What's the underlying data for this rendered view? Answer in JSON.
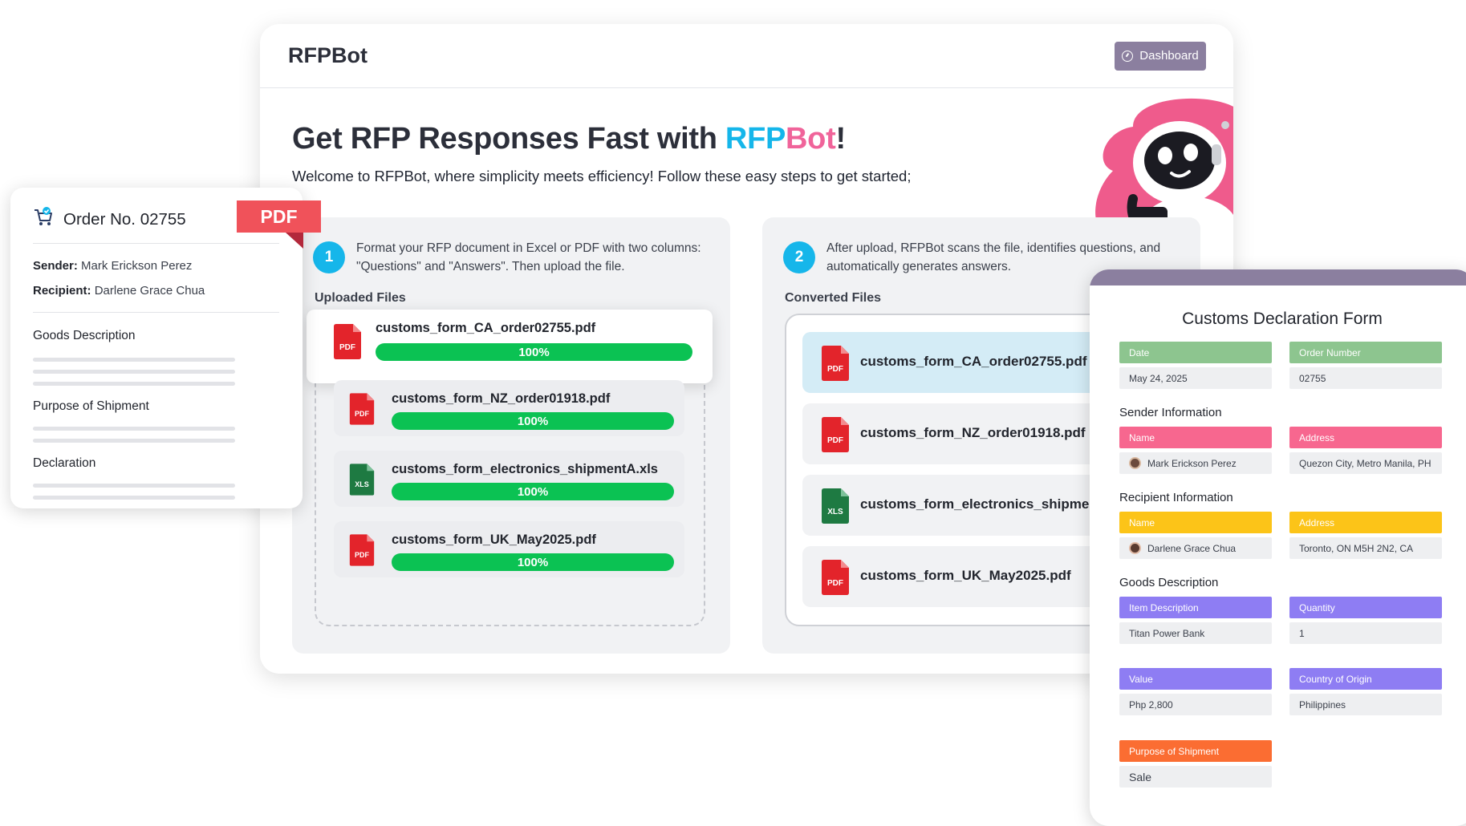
{
  "app": {
    "title": "RFPBot",
    "dashboard_label": "Dashboard"
  },
  "hero": {
    "title_prefix": "Get RFP Responses Fast with ",
    "title_rfp": "RFP",
    "title_bot": "Bot",
    "title_suffix": "!",
    "subtitle": "Welcome to RFPBot, where simplicity meets efficiency! Follow these easy steps to get started;"
  },
  "step1": {
    "number": "1",
    "text": "Format your RFP document in Excel or PDF with two columns: \"Questions\" and \"Answers\". Then upload the file.",
    "section_label": "Uploaded Files",
    "files": [
      {
        "name": "customs_form_CA_order02755.pdf",
        "type": "PDF",
        "progress": "100%"
      },
      {
        "name": "customs_form_NZ_order01918.pdf",
        "type": "PDF",
        "progress": "100%"
      },
      {
        "name": "customs_form_electronics_shipmentA.xls",
        "type": "XLS",
        "progress": "100%"
      },
      {
        "name": "customs_form_UK_May2025.pdf",
        "type": "PDF",
        "progress": "100%"
      }
    ]
  },
  "step2": {
    "number": "2",
    "text": "After upload, RFPBot scans the file, identifies questions, and automatically generates answers.",
    "section_label": "Converted Files",
    "files": [
      {
        "name": "customs_form_CA_order02755.pdf",
        "type": "PDF"
      },
      {
        "name": "customs_form_NZ_order01918.pdf",
        "type": "PDF"
      },
      {
        "name": "customs_form_electronics_shipmentA",
        "type": "XLS"
      },
      {
        "name": "customs_form_UK_May2025.pdf",
        "type": "PDF"
      }
    ]
  },
  "order": {
    "title": "Order No. 02755",
    "tag": "PDF",
    "sender_label": "Sender:",
    "sender": "Mark Erickson Perez",
    "recipient_label": "Recipient:",
    "recipient": "Darlene Grace Chua",
    "goods_label": "Goods Description",
    "purpose_label": "Purpose of Shipment",
    "declaration_label": "Declaration"
  },
  "customs": {
    "title": "Customs Declaration Form",
    "date_label": "Date",
    "date": "May 24, 2025",
    "order_label": "Order Number",
    "order": "02755",
    "sender_section": "Sender Information",
    "sender_name_label": "Name",
    "sender_name": "Mark Erickson Perez",
    "sender_address_label": "Address",
    "sender_address": "Quezon City, Metro Manila, PH",
    "recipient_section": "Recipient Information",
    "recipient_name_label": "Name",
    "recipient_name": "Darlene Grace Chua",
    "recipient_address_label": "Address",
    "recipient_address": "Toronto, ON M5H 2N2, CA",
    "goods_section": "Goods Description",
    "item_label": "Item Description",
    "item": "Titan Power Bank",
    "quantity_label": "Quantity",
    "quantity": "1",
    "value_label": "Value",
    "value": "Php 2,800",
    "origin_label": "Country of Origin",
    "origin": "Philippines",
    "purpose_label": "Purpose of Shipment",
    "purpose": "Sale"
  },
  "colors": {
    "accent_blue": "#16b6ea",
    "accent_pink": "#f0649a",
    "progress_green": "#0bc253",
    "header_purple": "#8b7f9f",
    "pdf_red": "#e3242b",
    "xls_green": "#1e7a42",
    "date_green": "#8dc58f",
    "sender_pink": "#f7678f",
    "recipient_yellow": "#fcc418",
    "goods_purple": "#8e7df3",
    "purpose_orange": "#fb6d32"
  }
}
